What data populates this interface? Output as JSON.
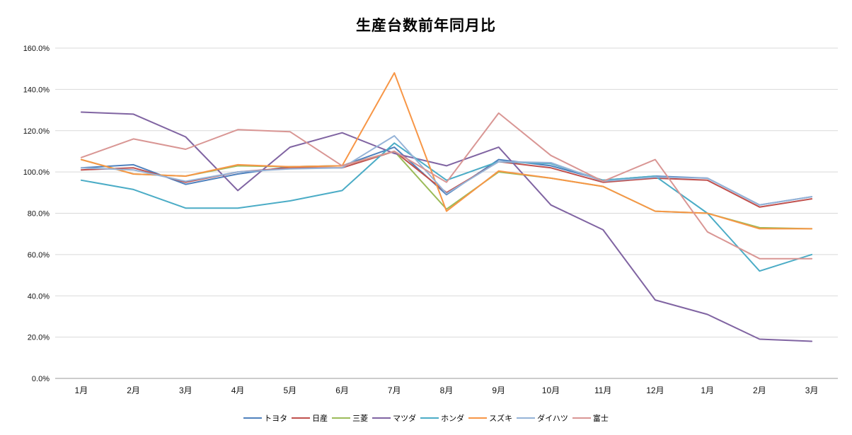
{
  "chart_data": {
    "type": "line",
    "title": "生産台数前年同月比",
    "categories": [
      "1月",
      "2月",
      "3月",
      "4月",
      "5月",
      "6月",
      "7月",
      "8月",
      "9月",
      "10月",
      "11月",
      "12月",
      "1月",
      "2月",
      "3月"
    ],
    "y_ticks": [
      "0.0%",
      "20.0%",
      "40.0%",
      "60.0%",
      "80.0%",
      "100.0%",
      "120.0%",
      "140.0%",
      "160.0%"
    ],
    "ylim": [
      0,
      160
    ],
    "y_step": 20,
    "grid": true,
    "legend_position": "bottom",
    "axis_color": "#9a9a9a",
    "grid_color": "#d9d9d9",
    "series": [
      {
        "name": "トヨタ",
        "color": "#4F81BD",
        "values": [
          102,
          103.5,
          94,
          99,
          102.5,
          103,
          112,
          89,
          106,
          103,
          96,
          98,
          97,
          84,
          88
        ]
      },
      {
        "name": "日産",
        "color": "#C0504D",
        "values": [
          101,
          102,
          95,
          100,
          102,
          102,
          110,
          90,
          105,
          102,
          95,
          97,
          96,
          83,
          87
        ]
      },
      {
        "name": "三菱",
        "color": "#9BBB59",
        "values": [
          106,
          99,
          98,
          103,
          102.5,
          103,
          110,
          82,
          100,
          97,
          93,
          81,
          80,
          73,
          72.5
        ]
      },
      {
        "name": "マツダ",
        "color": "#8064A2",
        "values": [
          129,
          128,
          117,
          91,
          112,
          119,
          109,
          103,
          112,
          84,
          72,
          38,
          31,
          19,
          18
        ]
      },
      {
        "name": "ホンダ",
        "color": "#4BACC6",
        "values": [
          96,
          91.5,
          82.5,
          82.5,
          86,
          91,
          114,
          96,
          105,
          104,
          96,
          98,
          80,
          52,
          60
        ]
      },
      {
        "name": "スズキ",
        "color": "#F79646",
        "values": [
          106,
          99,
          98,
          103.5,
          102.5,
          103,
          148,
          81,
          100.5,
          97,
          93,
          81,
          80,
          72.5,
          72.5
        ]
      },
      {
        "name": "ダイハツ",
        "color": "#95B3D7",
        "values": [
          102,
          101,
          95.5,
          100,
          101.5,
          102,
          117.5,
          89.5,
          105,
          104.5,
          95.5,
          97.5,
          97,
          84,
          88
        ]
      },
      {
        "name": "富士",
        "color": "#D99694",
        "values": [
          107,
          116,
          111,
          120.5,
          119.5,
          103,
          110,
          95,
          128.5,
          108,
          95.5,
          106,
          71,
          58,
          58
        ]
      }
    ]
  }
}
